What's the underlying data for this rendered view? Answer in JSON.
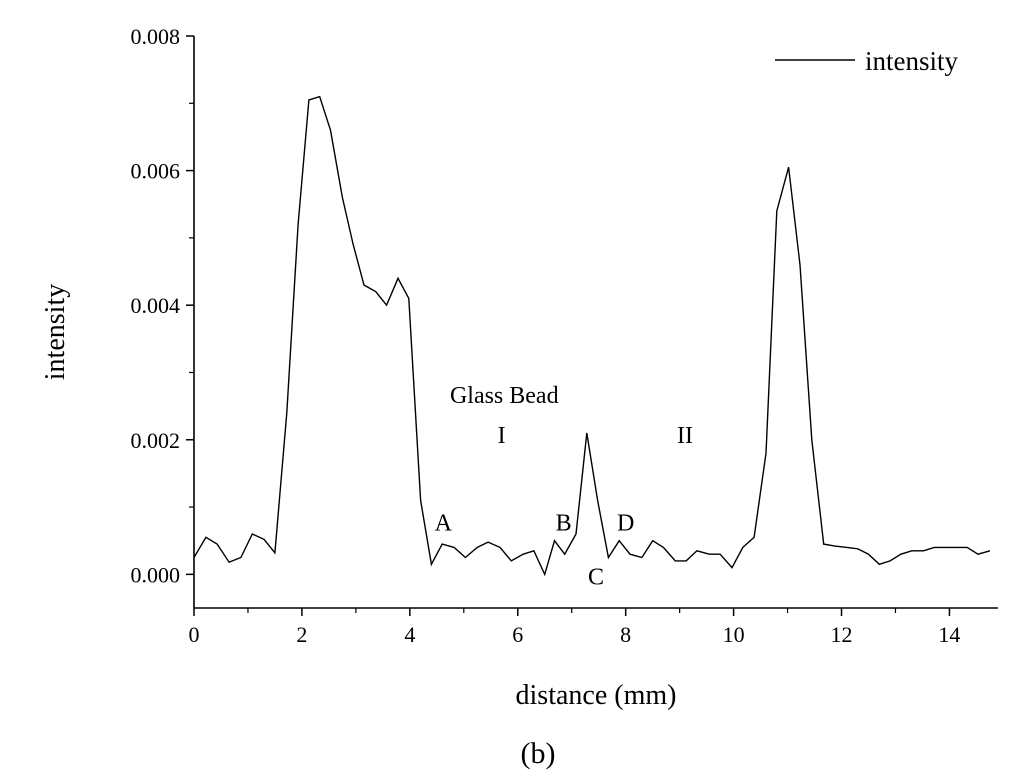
{
  "chart_data": {
    "type": "line",
    "panel_label": "(b)",
    "xlabel": "distance (mm)",
    "ylabel": "intensity",
    "xlim": [
      0,
      14.9
    ],
    "ylim": [
      -0.0005,
      0.008
    ],
    "x_ticks": [
      {
        "value": 0,
        "label": "0"
      },
      {
        "value": 2,
        "label": "2"
      },
      {
        "value": 4,
        "label": "4"
      },
      {
        "value": 6,
        "label": "6"
      },
      {
        "value": 8,
        "label": "8"
      },
      {
        "value": 10,
        "label": "10"
      },
      {
        "value": 12,
        "label": "12"
      },
      {
        "value": 14,
        "label": "14"
      }
    ],
    "y_ticks": [
      {
        "value": 0.0,
        "label": "0.000"
      },
      {
        "value": 0.002,
        "label": "0.002"
      },
      {
        "value": 0.004,
        "label": "0.004"
      },
      {
        "value": 0.006,
        "label": "0.006"
      },
      {
        "value": 0.008,
        "label": "0.008"
      }
    ],
    "grid": false,
    "legend": {
      "position": "top-right",
      "entries": [
        "intensity"
      ]
    },
    "series": [
      {
        "name": "intensity",
        "color": "#000000",
        "x": [
          0.0,
          0.22,
          0.43,
          0.65,
          0.87,
          1.08,
          1.3,
          1.5,
          1.72,
          1.93,
          2.13,
          2.33,
          2.53,
          2.75,
          2.95,
          3.15,
          3.37,
          3.57,
          3.78,
          3.98,
          4.2,
          4.4,
          4.6,
          4.82,
          5.03,
          5.25,
          5.45,
          5.67,
          5.88,
          6.1,
          6.3,
          6.5,
          6.68,
          6.87,
          7.08,
          7.28,
          7.48,
          7.68,
          7.88,
          8.08,
          8.3,
          8.5,
          8.7,
          8.92,
          9.12,
          9.32,
          9.55,
          9.75,
          9.97,
          10.17,
          10.38,
          10.6,
          10.8,
          11.02,
          11.23,
          11.45,
          11.67,
          11.88,
          12.1,
          12.3,
          12.5,
          12.7,
          12.9,
          13.1,
          13.3,
          13.52,
          13.72,
          13.92,
          14.13,
          14.33,
          14.53,
          14.75
        ],
        "y": [
          0.00025,
          0.00055,
          0.00045,
          0.00018,
          0.00025,
          0.0006,
          0.00052,
          0.00032,
          0.0024,
          0.0052,
          0.00705,
          0.0071,
          0.0066,
          0.0056,
          0.0049,
          0.0043,
          0.0042,
          0.004,
          0.0044,
          0.0041,
          0.0011,
          0.00015,
          0.00045,
          0.0004,
          0.00025,
          0.0004,
          0.00048,
          0.0004,
          0.0002,
          0.0003,
          0.00035,
          0.0,
          0.0005,
          0.0003,
          0.0006,
          0.0021,
          0.0011,
          0.00025,
          0.0005,
          0.0003,
          0.00025,
          0.0005,
          0.0004,
          0.0002,
          0.0002,
          0.00035,
          0.0003,
          0.0003,
          0.0001,
          0.0004,
          0.00055,
          0.0018,
          0.0054,
          0.00605,
          0.0046,
          0.002,
          0.00045,
          0.00042,
          0.0004,
          0.00038,
          0.0003,
          0.00015,
          0.0002,
          0.0003,
          0.00035,
          0.00035,
          0.0004,
          0.0004,
          0.0004,
          0.0004,
          0.0003,
          0.00035
        ]
      }
    ],
    "annotations": [
      {
        "text": "Glass Bead",
        "x": 5.75,
        "y": 0.00255
      },
      {
        "text": "I",
        "x": 5.7,
        "y": 0.00195
      },
      {
        "text": "II",
        "x": 9.1,
        "y": 0.00195
      },
      {
        "text": "A",
        "x": 4.62,
        "y": 0.00065
      },
      {
        "text": "B",
        "x": 6.85,
        "y": 0.00065
      },
      {
        "text": "C",
        "x": 7.45,
        "y": -0.00015
      },
      {
        "text": "D",
        "x": 8.0,
        "y": 0.00065
      }
    ]
  }
}
